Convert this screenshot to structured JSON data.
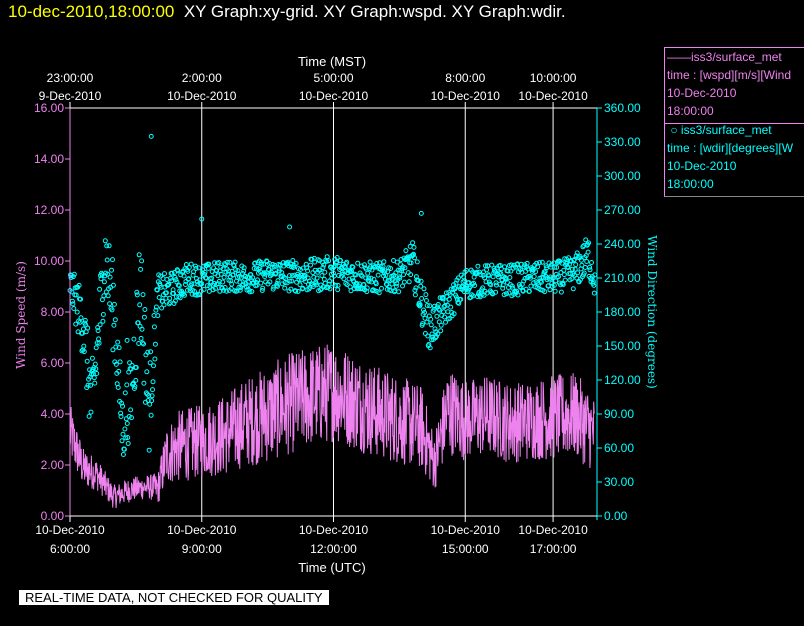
{
  "header": {
    "timestamp": "10-dec-2010,18:00:00",
    "titles": "XY Graph:xy-grid.  XY Graph:wspd.  XY Graph:wdir."
  },
  "legend": {
    "wspd": {
      "series": "iss3/surface_met",
      "desc": "time : [wspd][m/s][Wind",
      "date": "10-Dec-2010",
      "time": "18:00:00"
    },
    "wdir": {
      "series": "iss3/surface_met",
      "desc": "time : [wdir][degrees][W",
      "date": "10-Dec-2010",
      "time": "18:00:00"
    }
  },
  "banner": "REAL-TIME DATA, NOT CHECKED FOR QUALITY",
  "colors": {
    "wspd": "#ee82ee",
    "wdir": "#00ffff",
    "grid": "#ffffff",
    "axis": "#ffffff"
  },
  "chart_data": {
    "type": "line",
    "x_bottom_label": "Time (UTC)",
    "x_top_label": "Time (MST)",
    "y_left_label": "Wind Speed (m/s)",
    "y_right_label": "Wind Direction (degrees)",
    "x_range_utc_hours": [
      6.0,
      18.0
    ],
    "y_left_range": [
      0,
      16
    ],
    "y_right_range": [
      0,
      360
    ],
    "y_left_ticks": [
      "0.00",
      "2.00",
      "4.00",
      "6.00",
      "8.00",
      "10.00",
      "12.00",
      "14.00",
      "16.00"
    ],
    "y_right_ticks": [
      "0.00",
      "30.00",
      "60.00",
      "90.00",
      "120.00",
      "150.00",
      "180.00",
      "210.00",
      "240.00",
      "270.00",
      "300.00",
      "330.00",
      "360.00"
    ],
    "bottom_ticks": [
      {
        "t": 6.0,
        "l1": "10-Dec-2010",
        "l2": "6:00:00"
      },
      {
        "t": 9.0,
        "l1": "10-Dec-2010",
        "l2": "9:00:00"
      },
      {
        "t": 12.0,
        "l1": "10-Dec-2010",
        "l2": "12:00:00"
      },
      {
        "t": 15.0,
        "l1": "10-Dec-2010",
        "l2": "15:00:00"
      },
      {
        "t": 17.0,
        "l1": "10-Dec-2010",
        "l2": "17:00:00"
      }
    ],
    "top_ticks": [
      {
        "t": 6.0,
        "l1": "23:00:00",
        "l2": "9-Dec-2010"
      },
      {
        "t": 9.0,
        "l1": "2:00:00",
        "l2": "10-Dec-2010"
      },
      {
        "t": 12.0,
        "l1": "5:00:00",
        "l2": "10-Dec-2010"
      },
      {
        "t": 15.0,
        "l1": "8:00:00",
        "l2": "10-Dec-2010"
      },
      {
        "t": 17.0,
        "l1": "10:00:00",
        "l2": "10-Dec-2010"
      }
    ],
    "series": [
      {
        "name": "iss3/surface_met wspd",
        "style": "line",
        "x": [
          6.0,
          6.3,
          6.6,
          7.0,
          7.4,
          7.8,
          8.0,
          8.2,
          8.5,
          9.0,
          9.5,
          10.0,
          10.5,
          11.0,
          11.5,
          12.0,
          12.5,
          13.0,
          13.5,
          14.0,
          14.3,
          14.6,
          15.0,
          15.5,
          16.0,
          16.5,
          17.0,
          17.5,
          17.8,
          18.0
        ],
        "y": [
          3.2,
          1.8,
          1.6,
          0.7,
          1.0,
          1.1,
          1.0,
          2.3,
          2.6,
          2.8,
          3.0,
          3.5,
          3.8,
          4.2,
          4.5,
          4.7,
          4.3,
          3.9,
          3.6,
          3.3,
          2.0,
          4.0,
          3.6,
          3.8,
          3.5,
          3.6,
          3.7,
          3.8,
          3.3,
          3.0
        ],
        "noise": [
          1.4,
          1.0,
          0.8,
          0.6,
          0.6,
          0.6,
          0.8,
          1.5,
          1.8,
          1.8,
          2.0,
          2.2,
          2.4,
          2.5,
          2.5,
          2.5,
          2.4,
          2.3,
          2.2,
          2.1,
          1.4,
          2.2,
          2.0,
          2.0,
          2.0,
          2.0,
          2.1,
          2.1,
          2.0,
          1.8
        ]
      },
      {
        "name": "iss3/surface_met wdir",
        "style": "points",
        "x": [
          6.0,
          6.3,
          6.5,
          6.8,
          7.0,
          7.2,
          7.4,
          7.6,
          7.8,
          8.0,
          8.3,
          8.7,
          9.0,
          9.5,
          10.0,
          10.5,
          11.0,
          11.5,
          12.0,
          12.5,
          13.0,
          13.5,
          13.8,
          14.0,
          14.2,
          14.5,
          14.8,
          15.0,
          15.5,
          16.0,
          16.5,
          17.0,
          17.5,
          17.8,
          18.0
        ],
        "y": [
          205,
          170,
          95,
          230,
          180,
          75,
          110,
          205,
          95,
          195,
          200,
          210,
          208,
          212,
          210,
          213,
          212,
          212,
          215,
          212,
          210,
          212,
          225,
          190,
          165,
          180,
          195,
          205,
          208,
          208,
          210,
          210,
          215,
          230,
          200
        ],
        "noise": [
          15,
          30,
          40,
          35,
          40,
          30,
          35,
          50,
          40,
          18,
          15,
          14,
          14,
          14,
          13,
          14,
          14,
          15,
          15,
          14,
          14,
          14,
          18,
          20,
          20,
          15,
          14,
          14,
          14,
          14,
          14,
          14,
          15,
          18,
          14
        ]
      }
    ]
  }
}
